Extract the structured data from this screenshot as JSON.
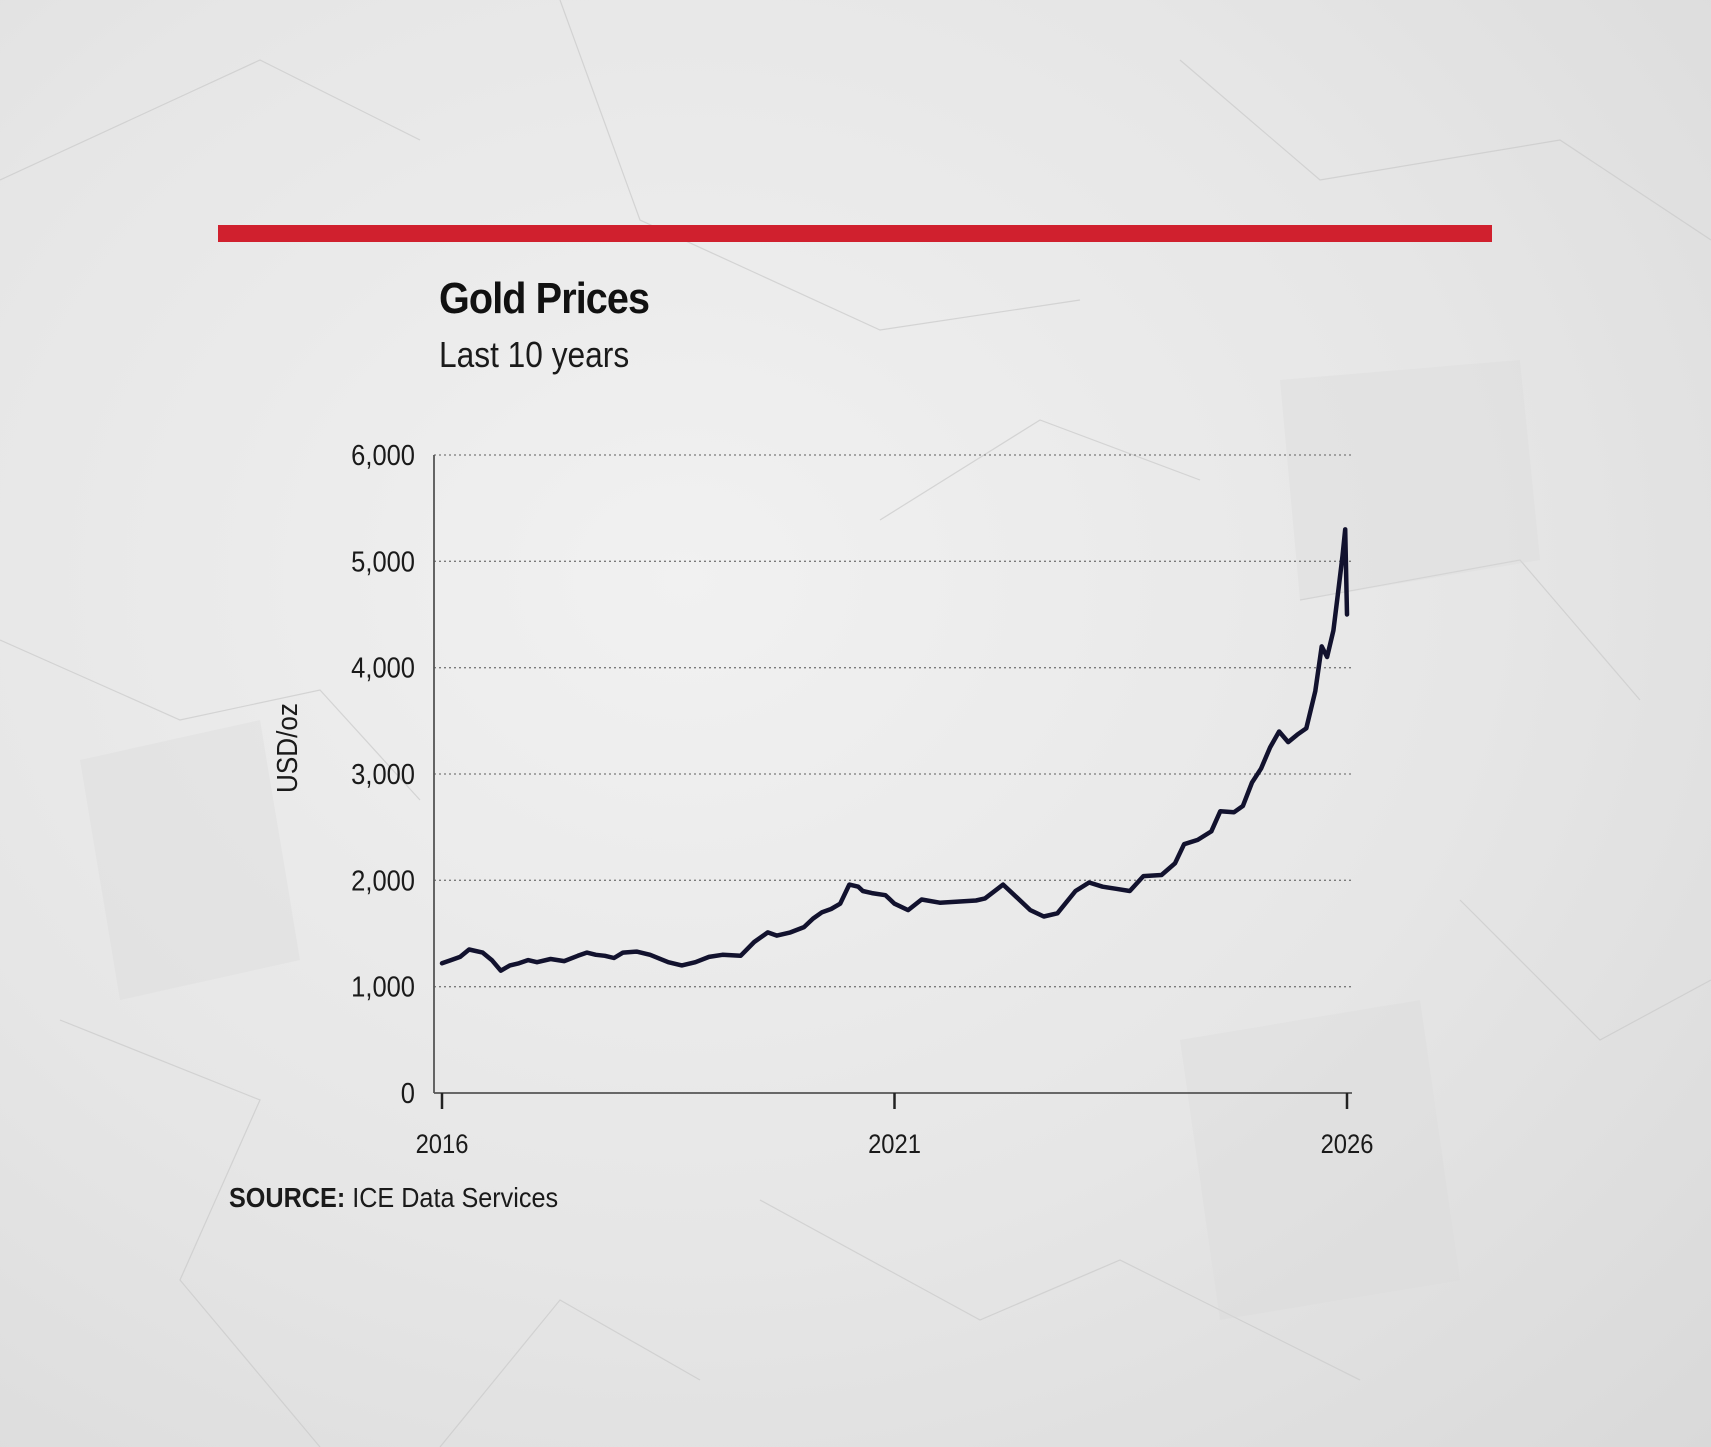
{
  "accent_color": "#d0202e",
  "header": {
    "title": "Gold Prices",
    "subtitle": "Last 10 years"
  },
  "source": {
    "label": "SOURCE:",
    "text": "ICE Data Services"
  },
  "chart_data": {
    "type": "line",
    "title": "Gold Prices",
    "subtitle": "Last 10 years",
    "xlabel": "",
    "ylabel": "USD/oz",
    "xlim": [
      2016,
      2026
    ],
    "ylim": [
      0,
      6000
    ],
    "x_ticks": [
      "2016",
      "2021",
      "2026"
    ],
    "x_tick_values": [
      2016,
      2021,
      2026
    ],
    "y_ticks": [
      "0",
      "1,000",
      "2,000",
      "3,000",
      "4,000",
      "5,000",
      "6,000"
    ],
    "y_tick_values": [
      0,
      1000,
      2000,
      3000,
      4000,
      5000,
      6000
    ],
    "grid": true,
    "line_color": "#12122e",
    "series": [
      {
        "name": "",
        "x": [
          2016.0,
          2016.1,
          2016.2,
          2016.3,
          2016.45,
          2016.55,
          2016.65,
          2016.75,
          2016.85,
          2016.95,
          2017.05,
          2017.2,
          2017.35,
          2017.5,
          2017.6,
          2017.7,
          2017.8,
          2017.9,
          2018.0,
          2018.15,
          2018.3,
          2018.5,
          2018.65,
          2018.8,
          2018.95,
          2019.1,
          2019.3,
          2019.45,
          2019.6,
          2019.7,
          2019.85,
          2020.0,
          2020.1,
          2020.2,
          2020.3,
          2020.4,
          2020.5,
          2020.6,
          2020.65,
          2020.75,
          2020.9,
          2021.0,
          2021.15,
          2021.3,
          2021.5,
          2021.7,
          2021.9,
          2022.0,
          2022.2,
          2022.35,
          2022.5,
          2022.65,
          2022.8,
          2023.0,
          2023.15,
          2023.3,
          2023.45,
          2023.6,
          2023.75,
          2023.95,
          2024.1,
          2024.2,
          2024.35,
          2024.5,
          2024.6,
          2024.75,
          2024.85,
          2024.95,
          2025.05,
          2025.15,
          2025.25,
          2025.35,
          2025.45,
          2025.55,
          2025.65,
          2025.72,
          2025.78,
          2025.85,
          2025.9,
          2025.95,
          2025.98,
          2026.0
        ],
        "y": [
          1220,
          1250,
          1280,
          1350,
          1320,
          1250,
          1150,
          1200,
          1220,
          1250,
          1230,
          1260,
          1240,
          1290,
          1320,
          1300,
          1290,
          1270,
          1320,
          1330,
          1300,
          1230,
          1200,
          1230,
          1280,
          1300,
          1290,
          1420,
          1510,
          1480,
          1510,
          1560,
          1640,
          1700,
          1730,
          1780,
          1960,
          1940,
          1900,
          1880,
          1860,
          1780,
          1720,
          1820,
          1790,
          1800,
          1810,
          1830,
          1960,
          1840,
          1720,
          1660,
          1690,
          1900,
          1980,
          1940,
          1920,
          1900,
          2040,
          2050,
          2160,
          2340,
          2380,
          2460,
          2650,
          2640,
          2700,
          2920,
          3050,
          3250,
          3400,
          3300,
          3370,
          3430,
          3780,
          4200,
          4100,
          4350,
          4700,
          5050,
          5300,
          4500
        ]
      }
    ]
  }
}
